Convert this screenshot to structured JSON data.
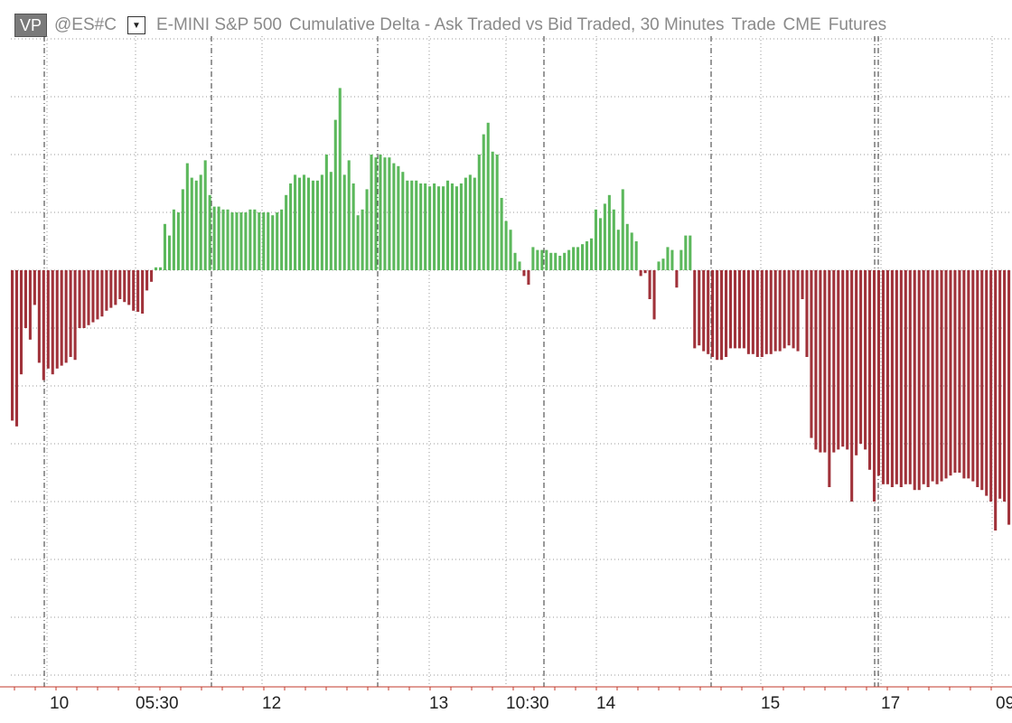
{
  "header": {
    "badge": "VP",
    "symbol": "@ES#C",
    "title": "E-MINI S&P 500",
    "study": "Cumulative Delta - Ask Traded vs Bid Traded, 30 Minutes",
    "type": "Trade",
    "exchange": "CME",
    "market": "Futures",
    "dropdown_icon": "caret-down-icon"
  },
  "colors": {
    "positive": "#5cb85c",
    "negative": "#a0323a",
    "grid": "#9a9a9a",
    "axis": "#c0392b",
    "text": "#222222"
  },
  "chart_data": {
    "type": "bar",
    "grid": true,
    "x_tick_labels": [
      "10",
      "05:30",
      "12",
      "13",
      "10:30",
      "14",
      "15",
      "17",
      "09"
    ],
    "series": [
      {
        "values": [
          -2.6,
          -2.7,
          -1.8,
          -1.0,
          -1.2,
          -0.6,
          -1.6,
          -1.9,
          -1.7,
          -1.8,
          -1.7,
          -1.65,
          -1.6,
          -1.5,
          -1.55,
          -1.0,
          -1.0,
          -0.95,
          -0.9,
          -0.85,
          -0.8,
          -0.7,
          -0.65,
          -0.6,
          -0.5,
          -0.55,
          -0.6,
          -0.7,
          -0.72,
          -0.75,
          -0.35,
          -0.2,
          0.05,
          0.05,
          0.8,
          0.6,
          1.05,
          1.0,
          1.4,
          1.85,
          1.6,
          1.55,
          1.65,
          1.9,
          1.3,
          1.1,
          1.1,
          1.05,
          1.05,
          1.0,
          1.0,
          1.0,
          1.0,
          1.05,
          1.05,
          1.0,
          1.0,
          1.0,
          0.95,
          1.0,
          1.05,
          1.3,
          1.5,
          1.65,
          1.6,
          1.65,
          1.6,
          1.55,
          1.55,
          1.65,
          2.0,
          1.7,
          2.6,
          3.15,
          1.65,
          1.9,
          1.5,
          0.95,
          1.05,
          1.4,
          2.0,
          1.95,
          2.0,
          1.95,
          1.95,
          1.85,
          1.8,
          1.7,
          1.55,
          1.55,
          1.55,
          1.5,
          1.5,
          1.45,
          1.5,
          1.45,
          1.45,
          1.55,
          1.5,
          1.45,
          1.5,
          1.6,
          1.65,
          1.6,
          2.0,
          2.35,
          2.55,
          2.05,
          2.0,
          1.25,
          0.85,
          0.7,
          0.3,
          0.15,
          -0.1,
          -0.25,
          0.4,
          0.35,
          0.35,
          0.35,
          0.3,
          0.3,
          0.25,
          0.3,
          0.35,
          0.4,
          0.4,
          0.45,
          0.5,
          0.55,
          1.05,
          0.9,
          1.15,
          1.3,
          1.05,
          0.7,
          1.4,
          0.8,
          0.65,
          0.5,
          -0.1,
          -0.05,
          -0.5,
          -0.85,
          0.15,
          0.2,
          0.4,
          0.35,
          -0.3,
          0.35,
          0.6,
          0.6,
          -1.35,
          -1.3,
          -1.4,
          -1.45,
          -1.5,
          -1.55,
          -1.55,
          -1.5,
          -1.35,
          -1.35,
          -1.35,
          -1.35,
          -1.45,
          -1.45,
          -1.5,
          -1.5,
          -1.45,
          -1.45,
          -1.4,
          -1.4,
          -1.35,
          -1.3,
          -1.35,
          -1.4,
          -0.5,
          -1.5,
          -2.9,
          -3.1,
          -3.15,
          -3.15,
          -3.75,
          -3.15,
          -3.1,
          -3.05,
          -3.1,
          -4.0,
          -3.2,
          -3.0,
          -3.1,
          -3.45,
          -4.0,
          -3.55,
          -3.7,
          -3.7,
          -3.75,
          -3.7,
          -3.75,
          -3.7,
          -3.7,
          -3.8,
          -3.8,
          -3.7,
          -3.75,
          -3.65,
          -3.7,
          -3.65,
          -3.6,
          -3.55,
          -3.5,
          -3.5,
          -3.6,
          -3.6,
          -3.65,
          -3.75,
          -3.8,
          -3.9,
          -4.0,
          -4.5,
          -3.95,
          -4.0,
          -4.4
        ]
      }
    ]
  }
}
